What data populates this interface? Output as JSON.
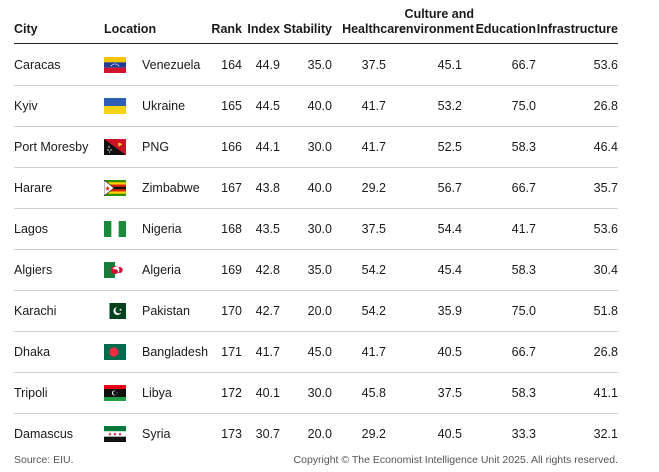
{
  "header": {
    "city": "City",
    "location": "Location",
    "rank": "Rank",
    "index": "Index",
    "stability": "Stability",
    "healthcare": "Healthcare",
    "culture_line1": "Culture and",
    "culture_line2": "environment",
    "education": "Education",
    "infrastructure": "Infrastructure"
  },
  "rows": [
    {
      "city": "Caracas",
      "flag": "venezuela-flag-icon",
      "location": "Venezuela",
      "rank": "164",
      "index": "44.9",
      "stability": "35.0",
      "healthcare": "37.5",
      "culture": "45.1",
      "education": "66.7",
      "infrastructure": "53.6"
    },
    {
      "city": "Kyiv",
      "flag": "ukraine-flag-icon",
      "location": "Ukraine",
      "rank": "165",
      "index": "44.5",
      "stability": "40.0",
      "healthcare": "41.7",
      "culture": "53.2",
      "education": "75.0",
      "infrastructure": "26.8"
    },
    {
      "city": "Port Moresby",
      "flag": "png-flag-icon",
      "location": "PNG",
      "rank": "166",
      "index": "44.1",
      "stability": "30.0",
      "healthcare": "41.7",
      "culture": "52.5",
      "education": "58.3",
      "infrastructure": "46.4"
    },
    {
      "city": "Harare",
      "flag": "zimbabwe-flag-icon",
      "location": "Zimbabwe",
      "rank": "167",
      "index": "43.8",
      "stability": "40.0",
      "healthcare": "29.2",
      "culture": "56.7",
      "education": "66.7",
      "infrastructure": "35.7"
    },
    {
      "city": "Lagos",
      "flag": "nigeria-flag-icon",
      "location": "Nigeria",
      "rank": "168",
      "index": "43.5",
      "stability": "30.0",
      "healthcare": "37.5",
      "culture": "54.4",
      "education": "41.7",
      "infrastructure": "53.6"
    },
    {
      "city": "Algiers",
      "flag": "algeria-flag-icon",
      "location": "Algeria",
      "rank": "169",
      "index": "42.8",
      "stability": "35.0",
      "healthcare": "54.2",
      "culture": "45.4",
      "education": "58.3",
      "infrastructure": "30.4"
    },
    {
      "city": "Karachi",
      "flag": "pakistan-flag-icon",
      "location": "Pakistan",
      "rank": "170",
      "index": "42.7",
      "stability": "20.0",
      "healthcare": "54.2",
      "culture": "35.9",
      "education": "75.0",
      "infrastructure": "51.8"
    },
    {
      "city": "Dhaka",
      "flag": "bangladesh-flag-icon",
      "location": "Bangladesh",
      "rank": "171",
      "index": "41.7",
      "stability": "45.0",
      "healthcare": "41.7",
      "culture": "40.5",
      "education": "66.7",
      "infrastructure": "26.8"
    },
    {
      "city": "Tripoli",
      "flag": "libya-flag-icon",
      "location": "Libya",
      "rank": "172",
      "index": "40.1",
      "stability": "30.0",
      "healthcare": "45.8",
      "culture": "37.5",
      "education": "58.3",
      "infrastructure": "41.1"
    },
    {
      "city": "Damascus",
      "flag": "syria-flag-icon",
      "location": "Syria",
      "rank": "173",
      "index": "30.7",
      "stability": "20.0",
      "healthcare": "29.2",
      "culture": "40.5",
      "education": "33.3",
      "infrastructure": "32.1"
    }
  ],
  "footer": {
    "source": "Source: EIU.",
    "copyright": "Copyright © The Economist Intelligence Unit 2025. All rights reserved."
  }
}
